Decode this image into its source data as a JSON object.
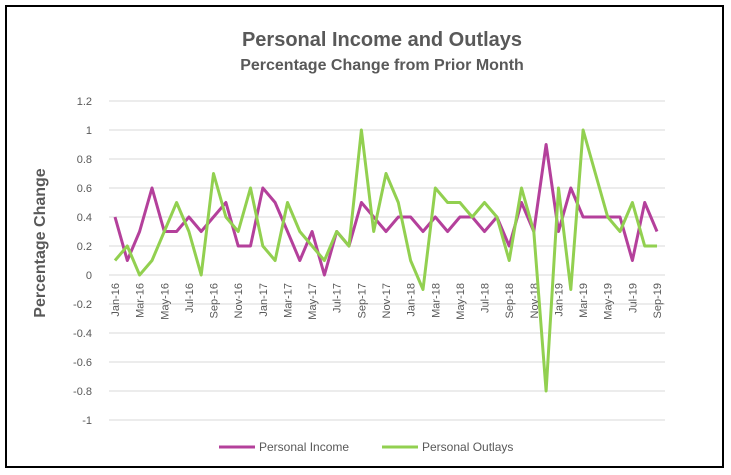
{
  "chart_data": {
    "type": "line",
    "title": "Personal Income and Outlays",
    "subtitle": "Percentage Change from Prior Month",
    "ylabel": "Percentage Change",
    "xlabel": "",
    "ylim": [
      -1,
      1.2
    ],
    "yticks": [
      "1.2",
      "1",
      "0.8",
      "0.6",
      "0.4",
      "0.2",
      "0",
      "-0.2",
      "-0.4",
      "-0.6",
      "-0.8",
      "-1"
    ],
    "ytick_values": [
      1.2,
      1,
      0.8,
      0.6,
      0.4,
      0.2,
      0,
      -0.2,
      -0.4,
      -0.6,
      -0.8,
      -1
    ],
    "grid": true,
    "legend_position": "bottom",
    "categories": [
      "Jan-16",
      "Feb-16",
      "Mar-16",
      "Apr-16",
      "May-16",
      "Jun-16",
      "Jul-16",
      "Aug-16",
      "Sep-16",
      "Oct-16",
      "Nov-16",
      "Dec-16",
      "Jan-17",
      "Feb-17",
      "Mar-17",
      "Apr-17",
      "May-17",
      "Jun-17",
      "Jul-17",
      "Aug-17",
      "Sep-17",
      "Oct-17",
      "Nov-17",
      "Dec-17",
      "Jan-18",
      "Feb-18",
      "Mar-18",
      "Apr-18",
      "May-18",
      "Jun-18",
      "Jul-18",
      "Aug-18",
      "Sep-18",
      "Oct-18",
      "Nov-18",
      "Dec-18",
      "Jan-19",
      "Feb-19",
      "Mar-19",
      "Apr-19",
      "May-19",
      "Jun-19",
      "Jul-19",
      "Aug-19",
      "Sep-19"
    ],
    "x_tick_labels": [
      "Jan-16",
      "Mar-16",
      "May-16",
      "Jul-16",
      "Sep-16",
      "Nov-16",
      "Jan-17",
      "Mar-17",
      "May-17",
      "Jul-17",
      "Sep-17",
      "Nov-17",
      "Jan-18",
      "Mar-18",
      "May-18",
      "Jul-18",
      "Sep-18",
      "Nov-18",
      "Jan-19",
      "Mar-19",
      "May-19",
      "Jul-19",
      "Sep-19"
    ],
    "series": [
      {
        "name": "Personal Income",
        "color": "#b4409b",
        "values": [
          0.4,
          0.1,
          0.3,
          0.6,
          0.3,
          0.3,
          0.4,
          0.3,
          0.4,
          0.5,
          0.2,
          0.2,
          0.6,
          0.5,
          0.3,
          0.1,
          0.3,
          0.0,
          0.3,
          0.2,
          0.5,
          0.4,
          0.3,
          0.4,
          0.4,
          0.3,
          0.4,
          0.3,
          0.4,
          0.4,
          0.3,
          0.4,
          0.2,
          0.5,
          0.3,
          0.9,
          0.3,
          0.6,
          0.4,
          0.4,
          0.4,
          0.4,
          0.1,
          0.5,
          0.3
        ]
      },
      {
        "name": "Personal Outlays",
        "color": "#92d050",
        "values": [
          0.1,
          0.2,
          0.0,
          0.1,
          0.3,
          0.5,
          0.3,
          0.0,
          0.7,
          0.4,
          0.3,
          0.6,
          0.2,
          0.1,
          0.5,
          0.3,
          0.2,
          0.1,
          0.3,
          0.2,
          1.0,
          0.3,
          0.7,
          0.5,
          0.1,
          -0.1,
          0.6,
          0.5,
          0.5,
          0.4,
          0.5,
          0.4,
          0.1,
          0.6,
          0.3,
          -0.8,
          0.6,
          -0.1,
          1.0,
          0.7,
          0.4,
          0.3,
          0.5,
          0.2,
          0.2
        ]
      }
    ]
  }
}
